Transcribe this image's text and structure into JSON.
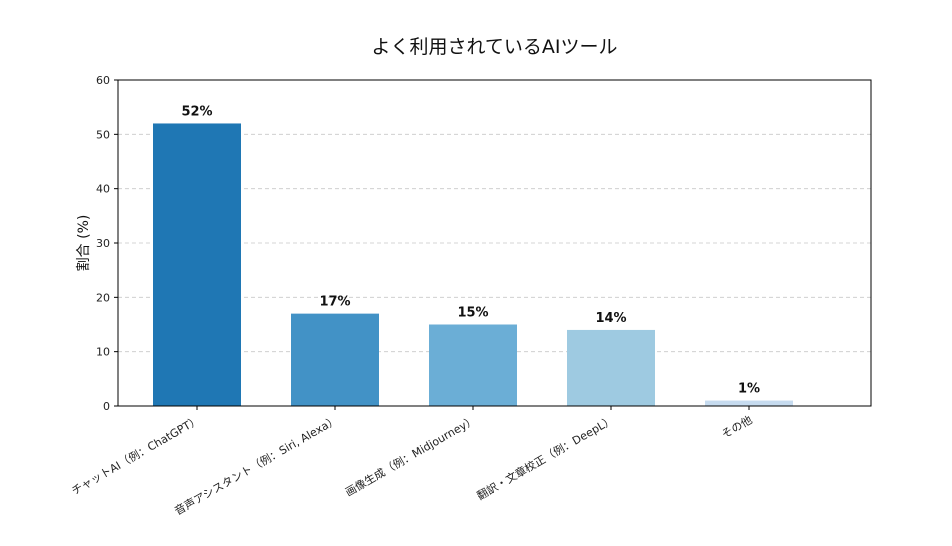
{
  "chart_data": {
    "type": "bar",
    "title": "よく利用されているAIツール",
    "xlabel": "",
    "ylabel": "割合 (%)",
    "ylim": [
      0,
      60
    ],
    "yticks": [
      0,
      10,
      20,
      30,
      40,
      50,
      60
    ],
    "grid": "y-dashed",
    "categories": [
      "チャットAI（例：ChatGPT）",
      "音声アシスタント（例：Siri, Alexa）",
      "画像生成（例：Midjourney）",
      "翻訳・文章校正（例：DeepL）",
      "その他"
    ],
    "values": [
      52,
      17,
      15,
      14,
      1
    ],
    "value_labels": [
      "52%",
      "17%",
      "15%",
      "14%",
      "1%"
    ],
    "colors": [
      "#1f77b4",
      "#4292c6",
      "#6baed6",
      "#9ecae1",
      "#c6dbef"
    ]
  }
}
